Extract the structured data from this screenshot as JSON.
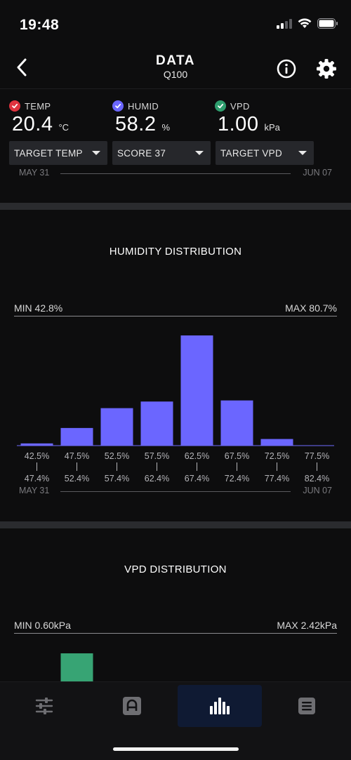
{
  "status": {
    "time": "19:48"
  },
  "header": {
    "title": "DATA",
    "subtitle": "Q100"
  },
  "metrics": [
    {
      "label": "TEMP",
      "value": "20.4",
      "unit": "°C",
      "color": "#e0333f"
    },
    {
      "label": "HUMID",
      "value": "58.2",
      "unit": "%",
      "color": "#6b66ff"
    },
    {
      "label": "VPD",
      "value": "1.00",
      "unit": "kPa",
      "color": "#2e9e6e"
    }
  ],
  "dropdowns": [
    "TARGET TEMP",
    "SCORE 37",
    "TARGET VPD"
  ],
  "date_range": {
    "start": "MAY 31",
    "end": "JUN 07"
  },
  "humidity": {
    "title": "HUMIDITY DISTRIBUTION",
    "min_label": "MIN 42.8%",
    "max_label": "MAX 80.7%",
    "date_start": "MAY 31",
    "date_end": "JUN 07"
  },
  "vpd": {
    "title": "VPD DISTRIBUTION",
    "min_label": "MIN 0.60kPa",
    "max_label": "MAX 2.42kPa"
  },
  "tabs": [
    {
      "name": "tab-controls",
      "icon": "sliders-icon",
      "active": false
    },
    {
      "name": "tab-automation",
      "icon": "automation-icon",
      "active": false
    },
    {
      "name": "tab-data",
      "icon": "bar-chart-icon",
      "active": true
    },
    {
      "name": "tab-menu",
      "icon": "list-icon",
      "active": false
    }
  ],
  "colors": {
    "accent": "#6b66ff",
    "vpd_bar": "#37a474",
    "background": "#0d0d0e",
    "section_gap": "#2a2b2e"
  },
  "chart_data": [
    {
      "type": "bar",
      "title": "HUMIDITY DISTRIBUTION",
      "categories": [
        "42.5% – 47.4%",
        "47.5% – 52.4%",
        "52.5% – 57.4%",
        "57.5% – 62.4%",
        "62.5% – 67.4%",
        "67.5% – 72.4%",
        "72.5% – 77.4%",
        "77.5% – 82.4%"
      ],
      "bin_low": [
        "42.5%",
        "47.5%",
        "52.5%",
        "57.5%",
        "62.5%",
        "67.5%",
        "72.5%",
        "77.5%"
      ],
      "bin_high": [
        "47.4%",
        "52.4%",
        "57.4%",
        "62.4%",
        "67.4%",
        "72.4%",
        "77.4%",
        "82.4%"
      ],
      "values": [
        2,
        16,
        34,
        40,
        100,
        41,
        6,
        0
      ],
      "ylim": [
        0,
        100
      ],
      "grid": false,
      "color": "#6b66ff"
    },
    {
      "type": "bar",
      "title": "VPD DISTRIBUTION",
      "values": [
        0,
        100
      ],
      "grid": false,
      "color": "#37a474"
    }
  ]
}
